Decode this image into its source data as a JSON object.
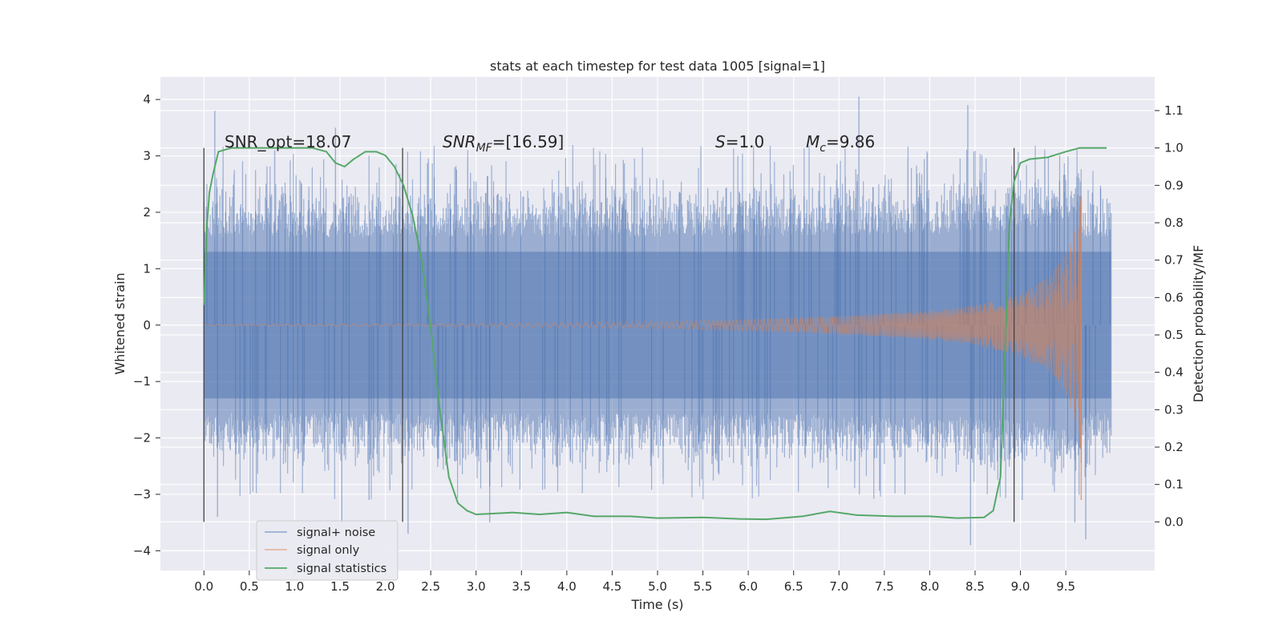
{
  "chart_data": {
    "type": "line",
    "title": "stats at each timestep for test data 1005 [signal=1]",
    "xlabel": "Time (s)",
    "ylabel": "Whitened strain",
    "y2label": "Detection probability/MF",
    "xlim": [
      -0.48,
      10.48
    ],
    "ylim": [
      -4.35,
      4.4
    ],
    "y2lim": [
      -0.13,
      1.19
    ],
    "x_ticks": [
      "0.0",
      "0.5",
      "1.0",
      "1.5",
      "2.0",
      "2.5",
      "3.0",
      "3.5",
      "4.0",
      "4.5",
      "5.0",
      "5.5",
      "6.0",
      "6.5",
      "7.0",
      "7.5",
      "8.0",
      "8.5",
      "9.0",
      "9.5"
    ],
    "y_ticks": [
      "4",
      "3",
      "2",
      "1",
      "0",
      "−1",
      "−2",
      "−3",
      "−4"
    ],
    "y2_ticks": [
      "1.1",
      "1.0",
      "0.9",
      "0.8",
      "0.7",
      "0.6",
      "0.5",
      "0.4",
      "0.3",
      "0.2",
      "0.1",
      "0.0"
    ],
    "grid": true,
    "legend_position": "lower-left",
    "annotations": {
      "snr_opt": "SNR_opt=18.07",
      "snr_mf_sym": "SNR",
      "snr_mf_sub": "MF",
      "snr_mf_val": "=[16.59]",
      "s_sym": "S",
      "s_val": "=1.0",
      "mc_sym": "M",
      "mc_sub": "c",
      "mc_val": "=9.86"
    },
    "window_markers_x": [
      0.0,
      2.19,
      8.93
    ],
    "series": [
      {
        "name": "signal+ noise",
        "color": "#4c72b0",
        "kind": "noise",
        "x_range": [
          0.0,
          10.0
        ],
        "envelope_y": [
          -2.3,
          2.5
        ],
        "peak_events": [
          {
            "x": 0.12,
            "y": 3.8
          },
          {
            "x": 0.15,
            "y": -3.4
          },
          {
            "x": 0.78,
            "y": 3.1
          },
          {
            "x": 1.45,
            "y": 3.5
          },
          {
            "x": 1.52,
            "y": -3.5
          },
          {
            "x": 1.82,
            "y": -3.1
          },
          {
            "x": 2.25,
            "y": -3.7
          },
          {
            "x": 3.15,
            "y": -3.5
          },
          {
            "x": 7.22,
            "y": 4.05
          },
          {
            "x": 8.42,
            "y": 3.9
          },
          {
            "x": 8.45,
            "y": -3.9
          },
          {
            "x": 9.6,
            "y": -3.5
          },
          {
            "x": 9.72,
            "y": -3.8
          },
          {
            "x": 9.02,
            "y": -3.1
          }
        ]
      },
      {
        "name": "signal only",
        "color": "#dd8452",
        "kind": "chirp",
        "x_range": [
          0.0,
          9.67
        ],
        "amplitude_points": [
          {
            "x": 0.0,
            "y": 0.01
          },
          {
            "x": 3.0,
            "y": 0.03
          },
          {
            "x": 5.0,
            "y": 0.06
          },
          {
            "x": 6.0,
            "y": 0.1
          },
          {
            "x": 7.0,
            "y": 0.16
          },
          {
            "x": 8.0,
            "y": 0.26
          },
          {
            "x": 8.5,
            "y": 0.35
          },
          {
            "x": 9.0,
            "y": 0.55
          },
          {
            "x": 9.3,
            "y": 0.85
          },
          {
            "x": 9.5,
            "y": 1.25
          },
          {
            "x": 9.6,
            "y": 1.7
          },
          {
            "x": 9.67,
            "y": 2.3
          }
        ]
      },
      {
        "name": "signal statistics",
        "color": "#55a868",
        "kind": "line",
        "axis": "right",
        "points": [
          {
            "x": 0.0,
            "y": 0.58
          },
          {
            "x": 0.03,
            "y": 0.78
          },
          {
            "x": 0.06,
            "y": 0.88
          },
          {
            "x": 0.1,
            "y": 0.93
          },
          {
            "x": 0.16,
            "y": 0.99
          },
          {
            "x": 0.3,
            "y": 1.0
          },
          {
            "x": 1.2,
            "y": 1.0
          },
          {
            "x": 1.35,
            "y": 0.99
          },
          {
            "x": 1.45,
            "y": 0.96
          },
          {
            "x": 1.55,
            "y": 0.95
          },
          {
            "x": 1.65,
            "y": 0.97
          },
          {
            "x": 1.78,
            "y": 0.99
          },
          {
            "x": 1.9,
            "y": 0.99
          },
          {
            "x": 2.0,
            "y": 0.98
          },
          {
            "x": 2.1,
            "y": 0.95
          },
          {
            "x": 2.2,
            "y": 0.9
          },
          {
            "x": 2.3,
            "y": 0.82
          },
          {
            "x": 2.4,
            "y": 0.7
          },
          {
            "x": 2.5,
            "y": 0.52
          },
          {
            "x": 2.6,
            "y": 0.3
          },
          {
            "x": 2.7,
            "y": 0.12
          },
          {
            "x": 2.8,
            "y": 0.05
          },
          {
            "x": 2.9,
            "y": 0.03
          },
          {
            "x": 3.0,
            "y": 0.02
          },
          {
            "x": 3.4,
            "y": 0.025
          },
          {
            "x": 3.7,
            "y": 0.02
          },
          {
            "x": 4.0,
            "y": 0.025
          },
          {
            "x": 4.3,
            "y": 0.015
          },
          {
            "x": 4.7,
            "y": 0.015
          },
          {
            "x": 5.0,
            "y": 0.01
          },
          {
            "x": 5.5,
            "y": 0.012
          },
          {
            "x": 5.9,
            "y": 0.008
          },
          {
            "x": 6.2,
            "y": 0.007
          },
          {
            "x": 6.6,
            "y": 0.015
          },
          {
            "x": 6.9,
            "y": 0.028
          },
          {
            "x": 7.2,
            "y": 0.018
          },
          {
            "x": 7.6,
            "y": 0.015
          },
          {
            "x": 8.0,
            "y": 0.015
          },
          {
            "x": 8.3,
            "y": 0.01
          },
          {
            "x": 8.6,
            "y": 0.012
          },
          {
            "x": 8.7,
            "y": 0.03
          },
          {
            "x": 8.78,
            "y": 0.12
          },
          {
            "x": 8.83,
            "y": 0.45
          },
          {
            "x": 8.88,
            "y": 0.8
          },
          {
            "x": 8.93,
            "y": 0.91
          },
          {
            "x": 9.0,
            "y": 0.96
          },
          {
            "x": 9.1,
            "y": 0.97
          },
          {
            "x": 9.3,
            "y": 0.975
          },
          {
            "x": 9.5,
            "y": 0.99
          },
          {
            "x": 9.65,
            "y": 1.0
          },
          {
            "x": 9.95,
            "y": 1.0
          }
        ]
      }
    ]
  }
}
